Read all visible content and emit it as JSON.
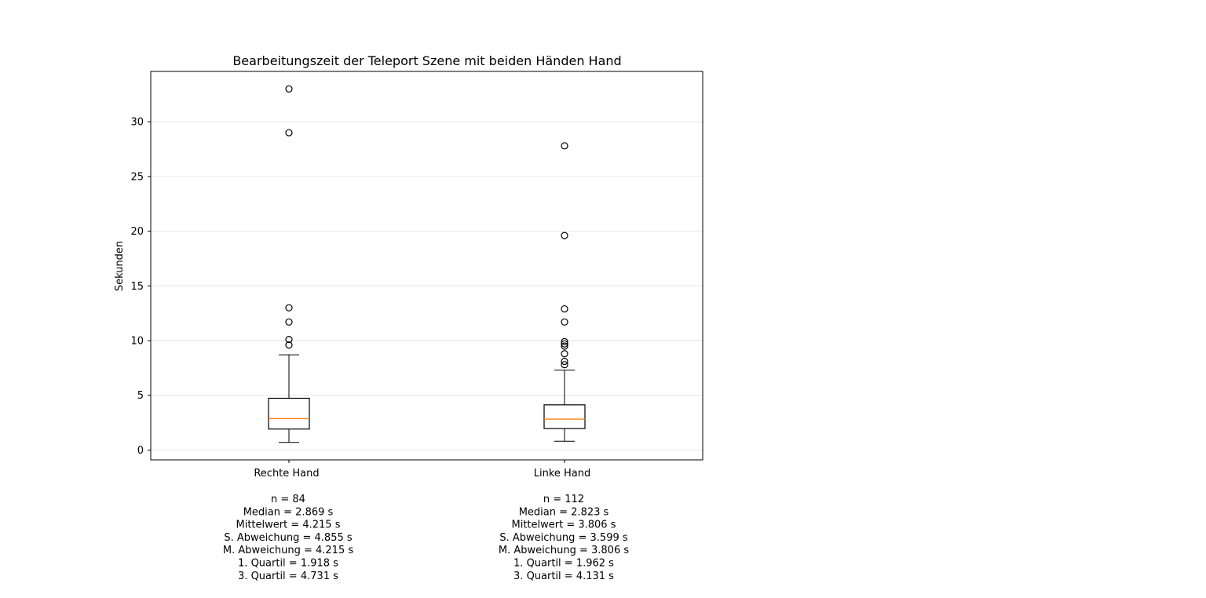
{
  "chart_data": {
    "type": "boxplot",
    "title": "Bearbeitungszeit der Teleport Szene mit beiden Händen Hand",
    "ylabel": "Sekunden",
    "xlabel": "",
    "ylim": [
      -0.9,
      34.6
    ],
    "yticks": [
      0,
      5,
      10,
      15,
      20,
      25,
      30
    ],
    "grid": "horizontal",
    "colors": {
      "box": "#000000",
      "median": "#ff7f0e",
      "grid": "#e6e6e6"
    },
    "boxes": [
      {
        "label": "Rechte Hand",
        "whisker_low": 0.7,
        "q1": 1.918,
        "median": 2.869,
        "q3": 4.731,
        "whisker_high": 8.7,
        "outliers": [
          9.6,
          10.1,
          11.7,
          13.0,
          29.0,
          33.0
        ],
        "stats": [
          "n = 84",
          "Median = 2.869 s",
          "Mittelwert = 4.215 s",
          "S. Abweichung = 4.855 s",
          "M. Abweichung = 4.215 s",
          "1. Quartil = 1.918 s",
          "3. Quartil = 4.731 s"
        ]
      },
      {
        "label": "Linke Hand",
        "whisker_low": 0.8,
        "q1": 1.962,
        "median": 2.823,
        "q3": 4.131,
        "whisker_high": 7.3,
        "outliers": [
          7.8,
          8.1,
          8.8,
          9.5,
          9.7,
          9.9,
          11.7,
          12.9,
          19.6,
          27.8
        ],
        "stats": [
          "n = 112",
          "Median = 2.823 s",
          "Mittelwert = 3.806 s",
          "S. Abweichung = 3.599 s",
          "M. Abweichung = 3.806 s",
          "1. Quartil = 1.962 s",
          "3. Quartil = 4.131 s"
        ]
      }
    ]
  }
}
